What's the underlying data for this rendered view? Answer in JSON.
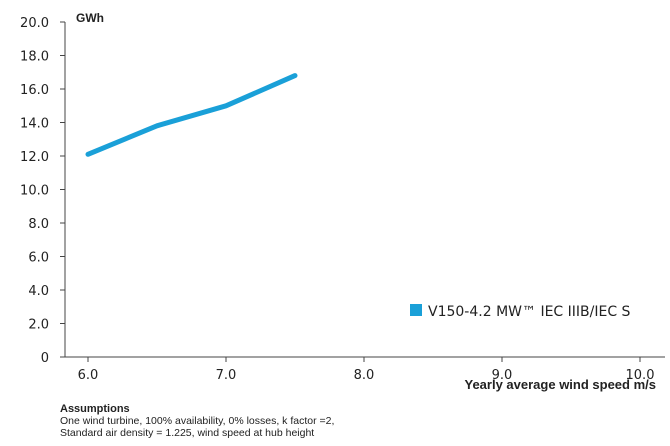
{
  "chart_data": {
    "type": "line",
    "unit_label": "GWh",
    "xlabel": "Yearly average wind speed m/s",
    "ylabel": "",
    "xlim": [
      6.0,
      10.0
    ],
    "ylim": [
      0,
      20.0
    ],
    "x_ticks": [
      "6.0",
      "7.0",
      "8.0",
      "9.0",
      "10.0"
    ],
    "y_ticks": [
      "0",
      "2.0",
      "4.0",
      "6.0",
      "8.0",
      "10.0",
      "12.0",
      "14.0",
      "16.0",
      "18.0",
      "20.0"
    ],
    "legend_position": "bottom-right",
    "series": [
      {
        "name": "V150-4.2 MW™ IEC IIIB/IEC S",
        "color": "#1aa0d8",
        "x": [
          6.0,
          6.5,
          7.0,
          7.5
        ],
        "y": [
          12.1,
          13.8,
          15.0,
          16.8
        ]
      }
    ]
  },
  "assumptions": {
    "title": "Assumptions",
    "line1": "One wind turbine, 100% availability, 0% losses, k factor =2,",
    "line2": "Standard air density = 1.225, wind speed at hub height"
  }
}
